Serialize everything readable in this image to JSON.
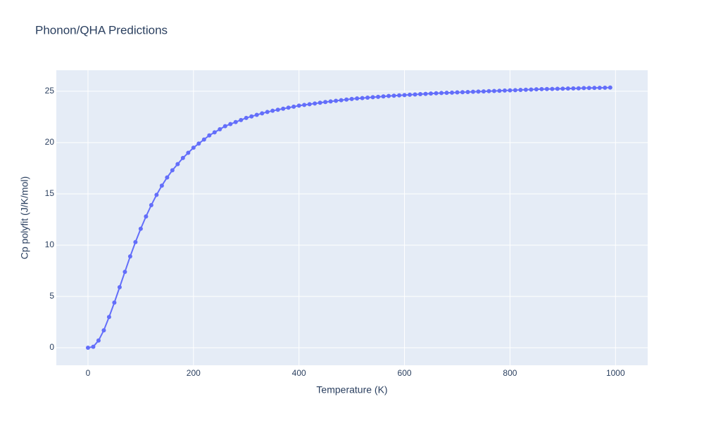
{
  "chart_data": {
    "type": "line",
    "title": "Phonon/QHA Predictions",
    "x_label": "Temperature (K)",
    "y_label": "Cp polyfit (J/K/mol)",
    "x": [
      0,
      10,
      20,
      30,
      40,
      50,
      60,
      70,
      80,
      90,
      100,
      110,
      120,
      130,
      140,
      150,
      160,
      170,
      180,
      190,
      200,
      210,
      220,
      230,
      240,
      250,
      260,
      270,
      280,
      290,
      300,
      310,
      320,
      330,
      340,
      350,
      360,
      370,
      380,
      390,
      400,
      410,
      420,
      430,
      440,
      450,
      460,
      470,
      480,
      490,
      500,
      510,
      520,
      530,
      540,
      550,
      560,
      570,
      580,
      590,
      600,
      610,
      620,
      630,
      640,
      650,
      660,
      670,
      680,
      690,
      700,
      710,
      720,
      730,
      740,
      750,
      760,
      770,
      780,
      790,
      800,
      810,
      820,
      830,
      840,
      850,
      860,
      870,
      880,
      890,
      900,
      910,
      920,
      930,
      940,
      950,
      960,
      970,
      980,
      990
    ],
    "series": [
      {
        "name": "Cp polyfit",
        "color": "#636efa",
        "values": [
          0,
          0.1,
          0.7,
          1.7,
          3.0,
          4.4,
          5.9,
          7.4,
          8.9,
          10.3,
          11.6,
          12.8,
          13.9,
          14.9,
          15.8,
          16.6,
          17.3,
          17.9,
          18.5,
          19.0,
          19.5,
          19.9,
          20.3,
          20.7,
          21.0,
          21.3,
          21.6,
          21.8,
          22.0,
          22.2,
          22.4,
          22.55,
          22.7,
          22.85,
          22.98,
          23.1,
          23.2,
          23.3,
          23.4,
          23.5,
          23.6,
          23.67,
          23.74,
          23.81,
          23.88,
          23.95,
          24.01,
          24.07,
          24.13,
          24.19,
          24.25,
          24.3,
          24.34,
          24.38,
          24.42,
          24.46,
          24.5,
          24.54,
          24.57,
          24.6,
          24.63,
          24.66,
          24.69,
          24.72,
          24.75,
          24.78,
          24.81,
          24.83,
          24.85,
          24.87,
          24.89,
          24.91,
          24.93,
          24.95,
          24.97,
          24.99,
          25.01,
          25.03,
          25.05,
          25.07,
          25.09,
          25.11,
          25.13,
          25.15,
          25.17,
          25.19,
          25.21,
          25.22,
          25.23,
          25.24,
          25.25,
          25.27,
          25.28,
          25.29,
          25.31,
          25.32,
          25.33,
          25.34,
          25.35,
          25.36
        ]
      }
    ],
    "xlim": [
      -60,
      1061
    ],
    "xticks": [
      0,
      200,
      400,
      600,
      800,
      1000
    ],
    "ylim": [
      -1.71,
      27.05
    ],
    "yticks": [
      0,
      5,
      10,
      15,
      20,
      25
    ],
    "grid": true
  }
}
